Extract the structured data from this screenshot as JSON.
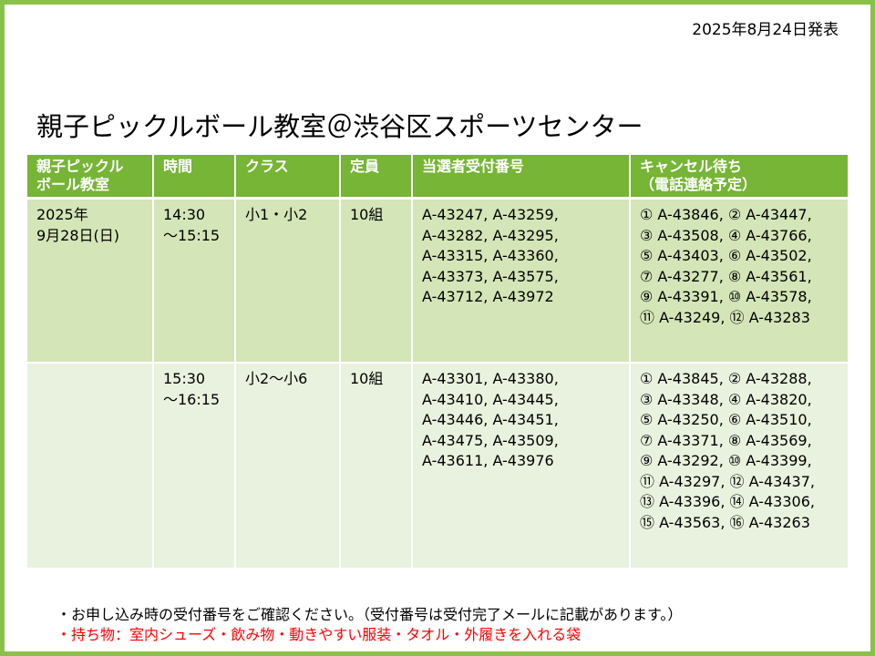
{
  "publish_date": "2025年8月24日発表",
  "title": "親子ピックルボール教室＠渋谷区スポーツセンター",
  "table": {
    "headers": [
      [
        "親子ピックル",
        "ボール教室"
      ],
      [
        "時間"
      ],
      [
        "クラス"
      ],
      [
        "定員"
      ],
      [
        "当選者受付番号"
      ],
      [
        "キャンセル待ち",
        "（電話連絡予定）"
      ]
    ],
    "rows": [
      {
        "date": [
          "2025年",
          "9月28日(日)"
        ],
        "time": [
          "14:30",
          "～15:15"
        ],
        "class": "小1・小2",
        "capacity": "10組",
        "winners": [
          "A-43247, A-43259,",
          "A-43282, A-43295,",
          "A-43315, A-43360,",
          "A-43373, A-43575,",
          "A-43712, A-43972"
        ],
        "waitlist": [
          "① A-43846, ② A-43447,",
          "③ A-43508, ④ A-43766,",
          "⑤ A-43403, ⑥ A-43502,",
          "⑦ A-43277, ⑧ A-43561,",
          "⑨ A-43391, ⑩ A-43578,",
          "⑪ A-43249, ⑫ A-43283"
        ]
      },
      {
        "date": [
          "",
          ""
        ],
        "time": [
          "15:30",
          "～16:15"
        ],
        "class": "小2～小6",
        "capacity": "10組",
        "winners": [
          "A-43301, A-43380,",
          "A-43410, A-43445,",
          "A-43446, A-43451,",
          "A-43475, A-43509,",
          "A-43611, A-43976"
        ],
        "waitlist": [
          "① A-43845, ② A-43288,",
          "③ A-43348, ④ A-43820,",
          "⑤ A-43250, ⑥ A-43510,",
          "⑦ A-43371, ⑧ A-43569,",
          "⑨ A-43292, ⑩ A-43399,",
          "⑪ A-43297, ⑫ A-43437,",
          "⑬ A-43396, ⑭ A-43306,",
          "⑮ A-43563, ⑯ A-43263"
        ]
      }
    ]
  },
  "notes": {
    "confirm": "・お申し込み時の受付番号をご確認ください。（受付番号は受付完了メールに記載があります。）",
    "items": "・持ち物：室内シューズ・飲み物・動きやすい服装・タオル・外履きを入れる袋"
  },
  "colors": {
    "border": "#8ac149",
    "header_bg": "#76b535",
    "row1_bg": "#d4e5b7",
    "row2_bg": "#e9f2de",
    "note_red": "#ff0000"
  }
}
